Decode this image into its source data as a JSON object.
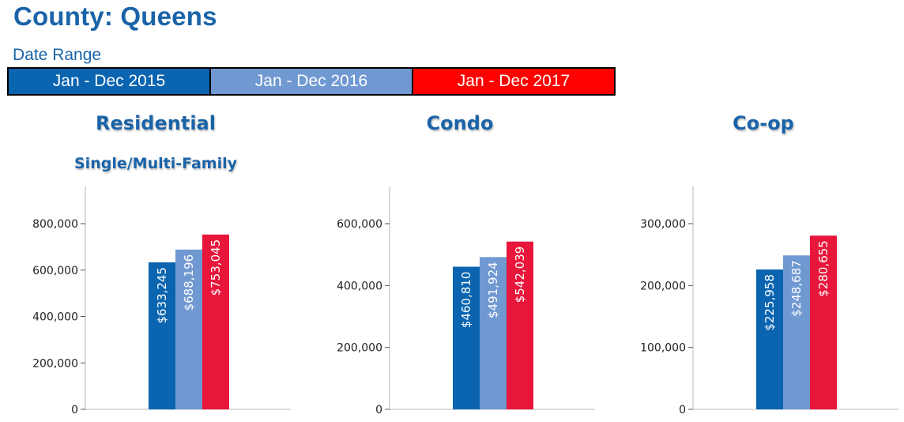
{
  "header": {
    "title": "County: Queens",
    "date_range_label": "Date Range"
  },
  "legend": [
    {
      "label": "Jan - Dec 2015",
      "color": "#0a64b0"
    },
    {
      "label": "Jan - Dec 2016",
      "color": "#7099d2"
    },
    {
      "label": "Jan - Dec 2017",
      "color": "#ff0000"
    }
  ],
  "series_colors": [
    "#0a64b0",
    "#7099d2",
    "#e8163a"
  ],
  "chart_data": [
    {
      "type": "bar",
      "title": "Residential",
      "subtitle": "Single/Multi-Family",
      "series": [
        {
          "name": "Jan - Dec 2015",
          "values": [
            633245
          ],
          "label": "$633,245"
        },
        {
          "name": "Jan - Dec 2016",
          "values": [
            688196
          ],
          "label": "$688,196"
        },
        {
          "name": "Jan - Dec 2017",
          "values": [
            753045
          ],
          "label": "$753,045"
        }
      ],
      "yticks": [
        0,
        200000,
        400000,
        600000,
        800000
      ],
      "ytick_labels": [
        "0",
        "200,000",
        "400,000",
        "600,000",
        "800,000"
      ],
      "ylim": [
        0,
        960000
      ]
    },
    {
      "type": "bar",
      "title": "Condo",
      "series": [
        {
          "name": "Jan - Dec 2015",
          "values": [
            460810
          ],
          "label": "$460,810"
        },
        {
          "name": "Jan - Dec 2016",
          "values": [
            491924
          ],
          "label": "$491,924"
        },
        {
          "name": "Jan - Dec 2017",
          "values": [
            542039
          ],
          "label": "$542,039"
        }
      ],
      "yticks": [
        0,
        200000,
        400000,
        600000
      ],
      "ytick_labels": [
        "0",
        "200,000",
        "400,000",
        "600,000"
      ],
      "ylim": [
        0,
        720000
      ]
    },
    {
      "type": "bar",
      "title": "Co-op",
      "series": [
        {
          "name": "Jan - Dec 2015",
          "values": [
            225958
          ],
          "label": "$225,958"
        },
        {
          "name": "Jan - Dec 2016",
          "values": [
            248687
          ],
          "label": "$248,687"
        },
        {
          "name": "Jan - Dec 2017",
          "values": [
            280655
          ],
          "label": "$280,655"
        }
      ],
      "yticks": [
        0,
        100000,
        200000,
        300000
      ],
      "ytick_labels": [
        "0",
        "100,000",
        "200,000",
        "300,000"
      ],
      "ylim": [
        0,
        360000
      ]
    }
  ]
}
